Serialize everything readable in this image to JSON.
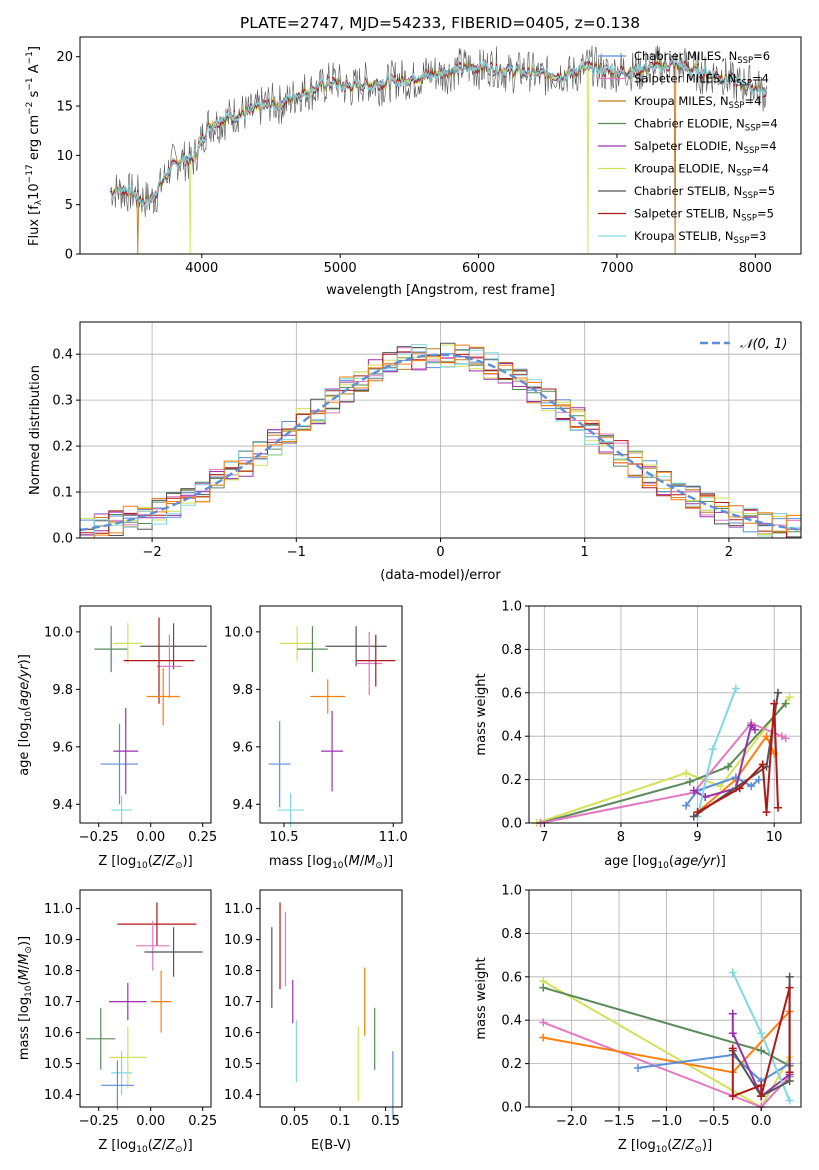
{
  "figure_title": "PLATE=2747, MJD=54233, FIBERID=0405, z=0.138",
  "chart_data": [
    {
      "id": "spectrum",
      "type": "line",
      "title": "PLATE=2747, MJD=54233, FIBERID=0405, z=0.138",
      "xlabel": "wavelength [Angstrom, rest frame]",
      "ylabel": "Flux [f_λ 10^-17 erg cm^-2 s^-1 A^-1]",
      "xlim": [
        3120,
        8330
      ],
      "ylim": [
        0,
        22
      ],
      "xticks": [
        4000,
        5000,
        6000,
        7000,
        8000
      ],
      "yticks": [
        0,
        5,
        10,
        15,
        20
      ],
      "grid": false,
      "legend_position": "upper-right",
      "continuum_points": {
        "x": [
          3340,
          3420,
          3500,
          3580,
          3650,
          3700,
          3780,
          3860,
          3930,
          3980,
          4050,
          4150,
          4250,
          4350,
          4450,
          4550,
          4650,
          4750,
          4850,
          4950,
          5050,
          5200,
          5400,
          5600,
          5800,
          6000,
          6200,
          6400,
          6600,
          6800,
          7000,
          7200,
          7400,
          7600,
          7800,
          8000,
          8080
        ],
        "y": [
          6.3,
          6.6,
          6.2,
          5.3,
          5.8,
          7.0,
          8.8,
          9.7,
          9.5,
          10.8,
          13.0,
          13.7,
          14.0,
          14.5,
          15.0,
          15.2,
          15.8,
          16.4,
          17.0,
          17.4,
          17.0,
          17.2,
          17.5,
          18.0,
          18.6,
          19.0,
          18.6,
          18.3,
          18.1,
          18.9,
          18.4,
          18.8,
          19.2,
          18.5,
          17.8,
          16.8,
          16.5
        ]
      },
      "dropouts": [
        {
          "series": "Kroupa MILES, N_SSP=4",
          "x": 3540
        },
        {
          "series": "Kroupa ELODIE, N_SSP=4",
          "x": 3915
        },
        {
          "series": "Kroupa ELODIE, N_SSP=4",
          "x": 6790
        },
        {
          "series": "Kroupa MILES, N_SSP=4",
          "x": 7420
        }
      ],
      "series": [
        {
          "name": "Chabrier MILES, N_SSP=6",
          "label": "Chabrier MILES, N",
          "sub": "SSP",
          "tail": "=6",
          "color": "#5b8fd9"
        },
        {
          "name": "Salpeter MILES, N_SSP=4",
          "label": "Salpeter MILES, N",
          "sub": "SSP",
          "tail": "=4",
          "color": "#e377c2"
        },
        {
          "name": "Kroupa MILES, N_SSP=4",
          "label": "Kroupa MILES, N",
          "sub": "SSP",
          "tail": "=4",
          "color": "#c87b1e"
        },
        {
          "name": "Chabrier ELODIE, N_SSP=4",
          "label": "Chabrier ELODIE, N",
          "sub": "SSP",
          "tail": "=4",
          "color": "#5a8a5a"
        },
        {
          "name": "Salpeter ELODIE, N_SSP=4",
          "label": "Salpeter ELODIE, N",
          "sub": "SSP",
          "tail": "=4",
          "color": "#9b30b0"
        },
        {
          "name": "Kroupa ELODIE, N_SSP=4",
          "label": "Kroupa ELODIE, N",
          "sub": "SSP",
          "tail": "=4",
          "color": "#d4e157"
        },
        {
          "name": "Chabrier STELIB, N_SSP=5",
          "label": "Chabrier STELIB, N",
          "sub": "SSP",
          "tail": "=5",
          "color": "#555555"
        },
        {
          "name": "Salpeter STELIB, N_SSP=5",
          "label": "Salpeter STELIB, N",
          "sub": "SSP",
          "tail": "=5",
          "color": "#b01818"
        },
        {
          "name": "Kroupa STELIB, N_SSP=3",
          "label": "Kroupa STELIB, N",
          "sub": "SSP",
          "tail": "=3",
          "color": "#80d8e0"
        }
      ]
    },
    {
      "id": "residuals",
      "type": "histogram",
      "xlabel": "(data-model)/error",
      "ylabel": "Normed distribution",
      "xlim": [
        -2.5,
        2.5
      ],
      "ylim": [
        0,
        0.47
      ],
      "xticks": [
        -2,
        -1,
        0,
        1,
        2
      ],
      "yticks": [
        0.0,
        0.1,
        0.2,
        0.3,
        0.4
      ],
      "grid": true,
      "bin_width": 0.1,
      "reference_curve": {
        "name": "𝒩(0, 1)",
        "type": "gaussian",
        "mean": 0,
        "sigma": 1,
        "color": "#5b8fd9",
        "style": "dashed"
      },
      "legend_position": "upper-right",
      "series_colors": [
        "#5b8fd9",
        "#e377c2",
        "#c87b1e",
        "#5a8a5a",
        "#9b30b0",
        "#d4e157",
        "#555555",
        "#b01818",
        "#80d8e0",
        "#ff7f0e"
      ]
    },
    {
      "id": "age_vs_Z",
      "type": "errorbar",
      "xlabel": "Z [log10(Z/Z⊙)]",
      "ylabel": "age  [log10(age/yr)]",
      "xlim": [
        -0.34,
        0.29
      ],
      "ylim": [
        9.335,
        10.09
      ],
      "xticks": [
        -0.25,
        0.0,
        0.25
      ],
      "yticks": [
        9.4,
        9.6,
        9.8,
        10.0
      ],
      "grid": false,
      "points": [
        {
          "color": "#5a8a5a",
          "x": -0.19,
          "xerr": 0.08,
          "y": 9.94,
          "yerr": 0.08
        },
        {
          "color": "#d4e157",
          "x": -0.11,
          "xerr": 0.07,
          "y": 9.96,
          "yerr": 0.07
        },
        {
          "color": "#555555",
          "x": 0.11,
          "xerr": 0.16,
          "y": 9.95,
          "yerr": 0.08
        },
        {
          "color": "#e377c2",
          "x": 0.09,
          "xerr": 0.06,
          "y": 9.88,
          "yerr": 0.11
        },
        {
          "color": "#b01818",
          "x": 0.04,
          "xerr": 0.17,
          "y": 9.9,
          "yerr": 0.15
        },
        {
          "color": "#ff7f0e",
          "x": 0.06,
          "xerr": 0.08,
          "y": 9.775,
          "yerr": 0.1
        },
        {
          "color": "#5b8fd9",
          "x": -0.15,
          "xerr": 0.09,
          "y": 9.54,
          "yerr": 0.14
        },
        {
          "color": "#9b30b0",
          "x": -0.12,
          "xerr": 0.06,
          "y": 9.585,
          "yerr": 0.15
        },
        {
          "color": "#80d8e0",
          "x": -0.14,
          "xerr": 0.05,
          "y": 9.38,
          "yerr": 0.05
        }
      ]
    },
    {
      "id": "age_vs_mass",
      "type": "errorbar",
      "xlabel": "mass [log10(M/M⊙)]",
      "ylabel": "",
      "xlim": [
        10.39,
        11.04
      ],
      "ylim": [
        9.335,
        10.09
      ],
      "xticks": [
        10.5,
        11.0
      ],
      "yticks": [
        9.4,
        9.6,
        9.8,
        10.0
      ],
      "grid": false,
      "points": [
        {
          "color": "#d4e157",
          "x": 10.56,
          "xerr": 0.08,
          "y": 9.96,
          "yerr": 0.06
        },
        {
          "color": "#5a8a5a",
          "x": 10.63,
          "xerr": 0.07,
          "y": 9.94,
          "yerr": 0.08
        },
        {
          "color": "#555555",
          "x": 10.83,
          "xerr": 0.14,
          "y": 9.95,
          "yerr": 0.07
        },
        {
          "color": "#e377c2",
          "x": 10.89,
          "xerr": 0.06,
          "y": 9.89,
          "yerr": 0.11
        },
        {
          "color": "#b01818",
          "x": 10.92,
          "xerr": 0.09,
          "y": 9.9,
          "yerr": 0.09
        },
        {
          "color": "#ff7f0e",
          "x": 10.7,
          "xerr": 0.08,
          "y": 9.775,
          "yerr": 0.06
        },
        {
          "color": "#9b30b0",
          "x": 10.72,
          "xerr": 0.05,
          "y": 9.585,
          "yerr": 0.14
        },
        {
          "color": "#5b8fd9",
          "x": 10.48,
          "xerr": 0.05,
          "y": 9.54,
          "yerr": 0.15
        },
        {
          "color": "#80d8e0",
          "x": 10.53,
          "xerr": 0.06,
          "y": 9.38,
          "yerr": 0.06
        }
      ]
    },
    {
      "id": "mass_weight_vs_age",
      "type": "line",
      "xlabel": "age  [log10(age/yr)]",
      "ylabel": "mass weight",
      "xlim": [
        6.8,
        10.35
      ],
      "ylim": [
        0,
        1.0
      ],
      "xticks": [
        7,
        8,
        9,
        10
      ],
      "yticks": [
        0.0,
        0.2,
        0.4,
        0.6,
        0.8,
        1.0
      ],
      "grid": true,
      "series": [
        {
          "color": "#d4e157",
          "x": [
            6.9,
            8.85,
            9.3,
            10.2
          ],
          "y": [
            0.0,
            0.23,
            0.17,
            0.58
          ]
        },
        {
          "color": "#5a8a5a",
          "x": [
            6.95,
            8.9,
            9.4,
            10.15
          ],
          "y": [
            0.0,
            0.19,
            0.26,
            0.55
          ]
        },
        {
          "color": "#e377c2",
          "x": [
            6.95,
            8.95,
            9.7,
            10.1,
            10.15
          ],
          "y": [
            0.0,
            0.14,
            0.46,
            0.4,
            0.39
          ]
        },
        {
          "color": "#ff7f0e",
          "x": [
            9.0,
            9.5,
            9.9,
            10.0
          ],
          "y": [
            0.05,
            0.2,
            0.4,
            0.32
          ]
        },
        {
          "color": "#5b8fd9",
          "x": [
            8.85,
            9.0,
            9.5,
            9.7,
            9.8
          ],
          "y": [
            0.08,
            0.15,
            0.21,
            0.17,
            0.2
          ]
        },
        {
          "color": "#9b30b0",
          "x": [
            8.95,
            9.1,
            9.5,
            9.7,
            9.75
          ],
          "y": [
            0.15,
            0.12,
            0.16,
            0.45,
            0.43
          ]
        },
        {
          "color": "#80d8e0",
          "x": [
            9.0,
            9.2,
            9.5
          ],
          "y": [
            0.03,
            0.34,
            0.62
          ]
        },
        {
          "color": "#555555",
          "x": [
            8.95,
            9.9,
            10.05
          ],
          "y": [
            0.03,
            0.26,
            0.6
          ]
        },
        {
          "color": "#b01818",
          "x": [
            9.0,
            9.55,
            9.85,
            9.9,
            10.0,
            10.05
          ],
          "y": [
            0.05,
            0.16,
            0.27,
            0.05,
            0.55,
            0.07
          ]
        }
      ]
    },
    {
      "id": "mass_vs_Z",
      "type": "errorbar",
      "xlabel": "Z [log10(Z/Z⊙)]",
      "ylabel": "mass [log10(M/M⊙)]",
      "xlim": [
        -0.34,
        0.29
      ],
      "ylim": [
        10.36,
        11.06
      ],
      "xticks": [
        -0.25,
        0.0,
        0.25
      ],
      "yticks": [
        10.4,
        10.5,
        10.6,
        10.7,
        10.8,
        10.9,
        11.0
      ],
      "grid": false,
      "points": [
        {
          "color": "#b01818",
          "x": 0.03,
          "xerr": 0.19,
          "y": 10.95,
          "yerr": 0.07
        },
        {
          "color": "#e377c2",
          "x": 0.01,
          "xerr": 0.08,
          "y": 10.88,
          "yerr": 0.08
        },
        {
          "color": "#555555",
          "x": 0.11,
          "xerr": 0.14,
          "y": 10.86,
          "yerr": 0.08
        },
        {
          "color": "#ff7f0e",
          "x": 0.05,
          "xerr": 0.05,
          "y": 10.7,
          "yerr": 0.1
        },
        {
          "color": "#9b30b0",
          "x": -0.11,
          "xerr": 0.09,
          "y": 10.7,
          "yerr": 0.06
        },
        {
          "color": "#5a8a5a",
          "x": -0.24,
          "xerr": 0.07,
          "y": 10.58,
          "yerr": 0.1
        },
        {
          "color": "#d4e157",
          "x": -0.11,
          "xerr": 0.09,
          "y": 10.52,
          "yerr": 0.1
        },
        {
          "color": "#80d8e0",
          "x": -0.14,
          "xerr": 0.05,
          "y": 10.47,
          "yerr": 0.07
        },
        {
          "color": "#5b8fd9",
          "x": -0.16,
          "xerr": 0.08,
          "y": 10.43,
          "yerr": 0.08
        }
      ]
    },
    {
      "id": "mass_vs_ebv",
      "type": "errorbar",
      "xlabel": "E(B-V)",
      "ylabel": "",
      "xlim": [
        0.012,
        0.168
      ],
      "ylim": [
        10.36,
        11.06
      ],
      "xticks": [
        0.05,
        0.1,
        0.15
      ],
      "yticks": [
        10.4,
        10.5,
        10.6,
        10.7,
        10.8,
        10.9,
        11.0
      ],
      "grid": false,
      "points": [
        {
          "color": "#555555",
          "x": 0.025,
          "xerr": 0.0,
          "y": 10.81,
          "yerr": 0.13
        },
        {
          "color": "#b01818",
          "x": 0.034,
          "xerr": 0.0,
          "y": 10.88,
          "yerr": 0.14
        },
        {
          "color": "#e377c2",
          "x": 0.04,
          "xerr": 0.0,
          "y": 10.87,
          "yerr": 0.12
        },
        {
          "color": "#9b30b0",
          "x": 0.048,
          "xerr": 0.0,
          "y": 10.7,
          "yerr": 0.07
        },
        {
          "color": "#80d8e0",
          "x": 0.052,
          "xerr": 0.0,
          "y": 10.54,
          "yerr": 0.1
        },
        {
          "color": "#d4e157",
          "x": 0.12,
          "xerr": 0.0,
          "y": 10.5,
          "yerr": 0.12
        },
        {
          "color": "#ff7f0e",
          "x": 0.127,
          "xerr": 0.0,
          "y": 10.7,
          "yerr": 0.11
        },
        {
          "color": "#5a8a5a",
          "x": 0.138,
          "xerr": 0.0,
          "y": 10.58,
          "yerr": 0.1
        },
        {
          "color": "#5b8fd9",
          "x": 0.158,
          "xerr": 0.0,
          "y": 10.43,
          "yerr": 0.11
        }
      ]
    },
    {
      "id": "mass_weight_vs_Z",
      "type": "line",
      "xlabel": "Z [log10(Z/Z⊙)]",
      "ylabel": "mass weight",
      "xlim": [
        -2.45,
        0.42
      ],
      "ylim": [
        0,
        1.0
      ],
      "xticks": [
        -2.0,
        -1.5,
        -1.0,
        -0.5,
        0.0
      ],
      "yticks": [
        0.0,
        0.2,
        0.4,
        0.6,
        0.8,
        1.0
      ],
      "grid": true,
      "series": [
        {
          "color": "#d4e157",
          "x": [
            -2.3,
            0.0,
            0.3
          ],
          "y": [
            0.58,
            0.0,
            0.23
          ]
        },
        {
          "color": "#5a8a5a",
          "x": [
            -2.3,
            0.0,
            0.3
          ],
          "y": [
            0.55,
            0.26,
            0.19
          ]
        },
        {
          "color": "#e377c2",
          "x": [
            -2.3,
            0.0,
            0.3
          ],
          "y": [
            0.39,
            0.0,
            0.14
          ]
        },
        {
          "color": "#ff7f0e",
          "x": [
            -2.3,
            -0.3,
            0.3
          ],
          "y": [
            0.32,
            0.16,
            0.44
          ]
        },
        {
          "color": "#5b8fd9",
          "x": [
            -1.3,
            -0.3,
            0.0,
            0.3
          ],
          "y": [
            0.18,
            0.24,
            0.12,
            0.2
          ]
        },
        {
          "color": "#9b30b0",
          "x": [
            -0.3,
            -0.3,
            0.0,
            0.3
          ],
          "y": [
            0.43,
            0.34,
            0.05,
            0.15
          ]
        },
        {
          "color": "#80d8e0",
          "x": [
            -0.3,
            0.0,
            0.3
          ],
          "y": [
            0.62,
            0.34,
            0.03
          ]
        },
        {
          "color": "#555555",
          "x": [
            -0.3,
            0.0,
            0.3,
            0.3
          ],
          "y": [
            0.26,
            0.05,
            0.12,
            0.6
          ]
        },
        {
          "color": "#b01818",
          "x": [
            -0.3,
            -0.3,
            0.0,
            0.0,
            0.3,
            0.3
          ],
          "y": [
            0.27,
            0.05,
            0.1,
            0.05,
            0.55,
            0.16
          ]
        }
      ]
    }
  ]
}
